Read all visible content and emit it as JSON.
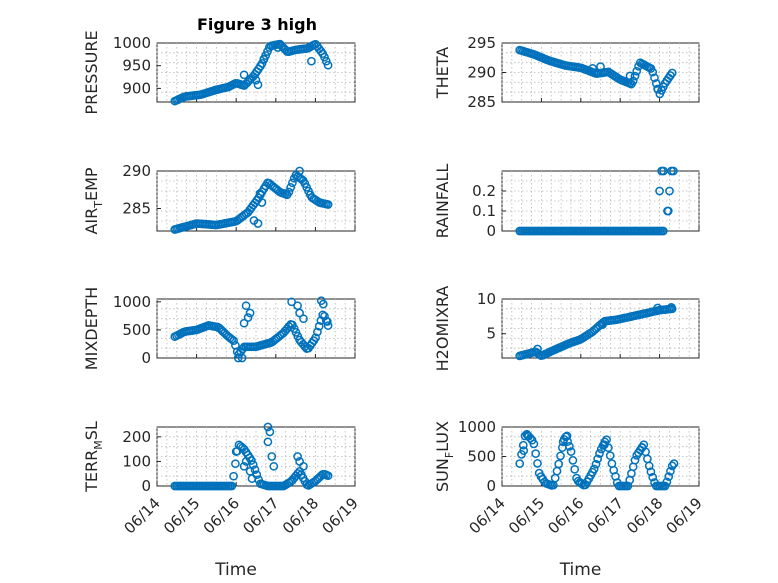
{
  "figure": {
    "title": "Figure 3 high",
    "marker_color": "#0072BD",
    "time_ticks": [
      "06/14",
      "06/15",
      "06/16",
      "06/17",
      "06/18",
      "06/19"
    ]
  },
  "chart_data": [
    {
      "type": "scatter",
      "ylabel": "PRESSURE",
      "xlabel": "",
      "grid": true,
      "ylim": [
        870,
        1000
      ],
      "yticks": [
        900,
        950,
        1000
      ],
      "anchors": [
        [
          14.45,
          872
        ],
        [
          14.7,
          882
        ],
        [
          15.1,
          886
        ],
        [
          15.5,
          897
        ],
        [
          15.8,
          903
        ],
        [
          16.0,
          912
        ],
        [
          16.2,
          906
        ],
        [
          16.45,
          928
        ],
        [
          16.65,
          954
        ],
        [
          16.85,
          993
        ],
        [
          17.1,
          998
        ],
        [
          17.3,
          980
        ],
        [
          17.5,
          985
        ],
        [
          17.8,
          988
        ],
        [
          18.0,
          998
        ],
        [
          18.2,
          975
        ],
        [
          18.35,
          945
        ]
      ],
      "extra": [
        [
          16.2,
          930
        ],
        [
          16.5,
          918
        ],
        [
          16.55,
          908
        ],
        [
          16.7,
          965
        ],
        [
          17.05,
          990
        ],
        [
          17.9,
          960
        ]
      ]
    },
    {
      "type": "scatter",
      "ylabel": "THETA",
      "xlabel": "",
      "grid": true,
      "ylim": [
        285,
        295
      ],
      "yticks": [
        285,
        290,
        295
      ],
      "anchors": [
        [
          14.45,
          293.8
        ],
        [
          14.8,
          293.1
        ],
        [
          15.2,
          292.0
        ],
        [
          15.6,
          291.2
        ],
        [
          16.0,
          290.8
        ],
        [
          16.4,
          289.8
        ],
        [
          16.7,
          290.1
        ],
        [
          17.0,
          288.8
        ],
        [
          17.3,
          288.0
        ],
        [
          17.5,
          291.7
        ],
        [
          17.8,
          290.6
        ],
        [
          18.0,
          286.3
        ],
        [
          18.15,
          288.3
        ],
        [
          18.35,
          290.2
        ]
      ],
      "extra": [
        [
          16.3,
          290.7
        ],
        [
          16.5,
          291.0
        ],
        [
          17.25,
          289.4
        ],
        [
          17.95,
          287.2
        ]
      ]
    },
    {
      "type": "scatter",
      "ylabel": "AIR_TEMP",
      "ylabel_parts": [
        "AIR",
        "T",
        "EMP"
      ],
      "xlabel": "",
      "grid": true,
      "ylim": [
        282,
        290
      ],
      "yticks": [
        285,
        290
      ],
      "anchors": [
        [
          14.45,
          282.2
        ],
        [
          15.0,
          283.0
        ],
        [
          15.5,
          282.8
        ],
        [
          16.0,
          283.3
        ],
        [
          16.3,
          284.5
        ],
        [
          16.55,
          286.3
        ],
        [
          16.8,
          288.5
        ],
        [
          17.1,
          287.2
        ],
        [
          17.3,
          286.8
        ],
        [
          17.5,
          289.5
        ],
        [
          17.7,
          288.7
        ],
        [
          17.9,
          286.5
        ],
        [
          18.1,
          285.8
        ],
        [
          18.35,
          285.5
        ]
      ],
      "extra": [
        [
          16.45,
          283.4
        ],
        [
          16.55,
          283.0
        ],
        [
          16.6,
          287.0
        ],
        [
          16.65,
          285.8
        ],
        [
          17.6,
          290.0
        ]
      ]
    },
    {
      "type": "scatter",
      "ylabel": "RAINFALL",
      "xlabel": "",
      "grid": true,
      "ylim": [
        0,
        0.3
      ],
      "yticks": [
        0,
        0.1,
        0.2
      ],
      "anchors": [
        [
          14.45,
          0
        ],
        [
          18.1,
          0
        ]
      ],
      "extra": [
        [
          18.0,
          0.2
        ],
        [
          18.05,
          0.3
        ],
        [
          18.1,
          0.3
        ],
        [
          18.2,
          0.1
        ],
        [
          18.22,
          0.1
        ],
        [
          18.3,
          0.3
        ],
        [
          18.35,
          0.3
        ],
        [
          18.25,
          0.2
        ]
      ]
    },
    {
      "type": "scatter",
      "ylabel": "MIXDEPTH",
      "xlabel": "",
      "grid": true,
      "ylim": [
        0,
        1050
      ],
      "yticks": [
        0,
        500,
        1000
      ],
      "anchors": [
        [
          14.45,
          380
        ],
        [
          14.7,
          470
        ],
        [
          15.0,
          500
        ],
        [
          15.3,
          580
        ],
        [
          15.55,
          550
        ],
        [
          15.8,
          380
        ],
        [
          15.95,
          300
        ],
        [
          16.05,
          50
        ],
        [
          16.2,
          200
        ],
        [
          16.5,
          200
        ],
        [
          16.9,
          280
        ],
        [
          17.2,
          450
        ],
        [
          17.4,
          620
        ],
        [
          17.6,
          320
        ],
        [
          17.8,
          150
        ],
        [
          18.0,
          350
        ],
        [
          18.2,
          800
        ],
        [
          18.35,
          520
        ]
      ],
      "extra": [
        [
          16.2,
          620
        ],
        [
          16.25,
          930
        ],
        [
          16.3,
          720
        ],
        [
          16.35,
          800
        ],
        [
          16.05,
          0
        ],
        [
          16.15,
          -5
        ],
        [
          17.4,
          1000
        ],
        [
          17.55,
          930
        ],
        [
          17.6,
          800
        ],
        [
          17.7,
          700
        ],
        [
          18.15,
          1020
        ],
        [
          18.2,
          960
        ],
        [
          18.3,
          650
        ]
      ]
    },
    {
      "type": "scatter",
      "ylabel": "H2OMIXRA",
      "xlabel": "",
      "grid": true,
      "ylim": [
        1.5,
        10
      ],
      "yticks": [
        5,
        10
      ],
      "anchors": [
        [
          14.45,
          1.8
        ],
        [
          14.85,
          2.4
        ],
        [
          15.0,
          1.8
        ],
        [
          15.3,
          2.6
        ],
        [
          15.7,
          3.6
        ],
        [
          16.0,
          4.2
        ],
        [
          16.3,
          5.3
        ],
        [
          16.6,
          6.8
        ],
        [
          16.9,
          7.0
        ],
        [
          17.3,
          7.5
        ],
        [
          17.7,
          8.0
        ],
        [
          18.0,
          8.4
        ],
        [
          18.35,
          8.6
        ]
      ],
      "extra": [
        [
          14.9,
          2.8
        ],
        [
          16.55,
          6.3
        ],
        [
          17.95,
          8.7
        ],
        [
          18.3,
          8.8
        ]
      ]
    },
    {
      "type": "scatter",
      "ylabel": "TERR_MSL",
      "ylabel_parts": [
        "TERR",
        "M",
        "SL"
      ],
      "xlabel": "Time",
      "grid": true,
      "ylim": [
        0,
        240
      ],
      "yticks": [
        0,
        100,
        200
      ],
      "anchors": [
        [
          14.45,
          0
        ],
        [
          15.9,
          0
        ],
        [
          16.05,
          170
        ],
        [
          16.2,
          150
        ],
        [
          16.4,
          100
        ],
        [
          16.6,
          10
        ],
        [
          16.8,
          0
        ],
        [
          17.2,
          0
        ],
        [
          17.4,
          20
        ],
        [
          17.6,
          60
        ],
        [
          17.8,
          0
        ],
        [
          18.0,
          20
        ],
        [
          18.2,
          50
        ],
        [
          18.35,
          40
        ]
      ],
      "extra": [
        [
          16.0,
          140
        ],
        [
          16.2,
          80
        ],
        [
          16.25,
          100
        ],
        [
          16.35,
          60
        ],
        [
          16.4,
          30
        ],
        [
          16.8,
          240
        ],
        [
          16.85,
          220
        ],
        [
          16.8,
          180
        ],
        [
          16.9,
          120
        ],
        [
          16.95,
          80
        ],
        [
          17.55,
          120
        ],
        [
          17.6,
          100
        ],
        [
          17.7,
          80
        ]
      ]
    },
    {
      "type": "scatter",
      "ylabel": "SUN_FLUX",
      "ylabel_parts": [
        "SUN",
        "F",
        "LUX"
      ],
      "xlabel": "Time",
      "grid": true,
      "ylim": [
        0,
        1000
      ],
      "yticks": [
        0,
        500,
        1000
      ],
      "anchors": [
        [
          14.45,
          380
        ],
        [
          14.6,
          900
        ],
        [
          14.8,
          750
        ],
        [
          14.95,
          200
        ],
        [
          15.1,
          50
        ],
        [
          15.3,
          0
        ],
        [
          15.45,
          400
        ],
        [
          15.6,
          870
        ],
        [
          15.75,
          600
        ],
        [
          15.9,
          100
        ],
        [
          16.1,
          0
        ],
        [
          16.35,
          300
        ],
        [
          16.5,
          600
        ],
        [
          16.65,
          800
        ],
        [
          16.8,
          350
        ],
        [
          16.95,
          0
        ],
        [
          17.2,
          0
        ],
        [
          17.4,
          500
        ],
        [
          17.6,
          700
        ],
        [
          17.75,
          300
        ],
        [
          17.9,
          0
        ],
        [
          18.15,
          0
        ],
        [
          18.35,
          400
        ],
        [
          18.4,
          330
        ]
      ],
      "extra": [
        [
          14.55,
          600
        ],
        [
          14.65,
          860
        ],
        [
          15.55,
          750
        ],
        [
          15.65,
          850
        ],
        [
          16.6,
          700
        ],
        [
          17.55,
          650
        ]
      ]
    }
  ]
}
